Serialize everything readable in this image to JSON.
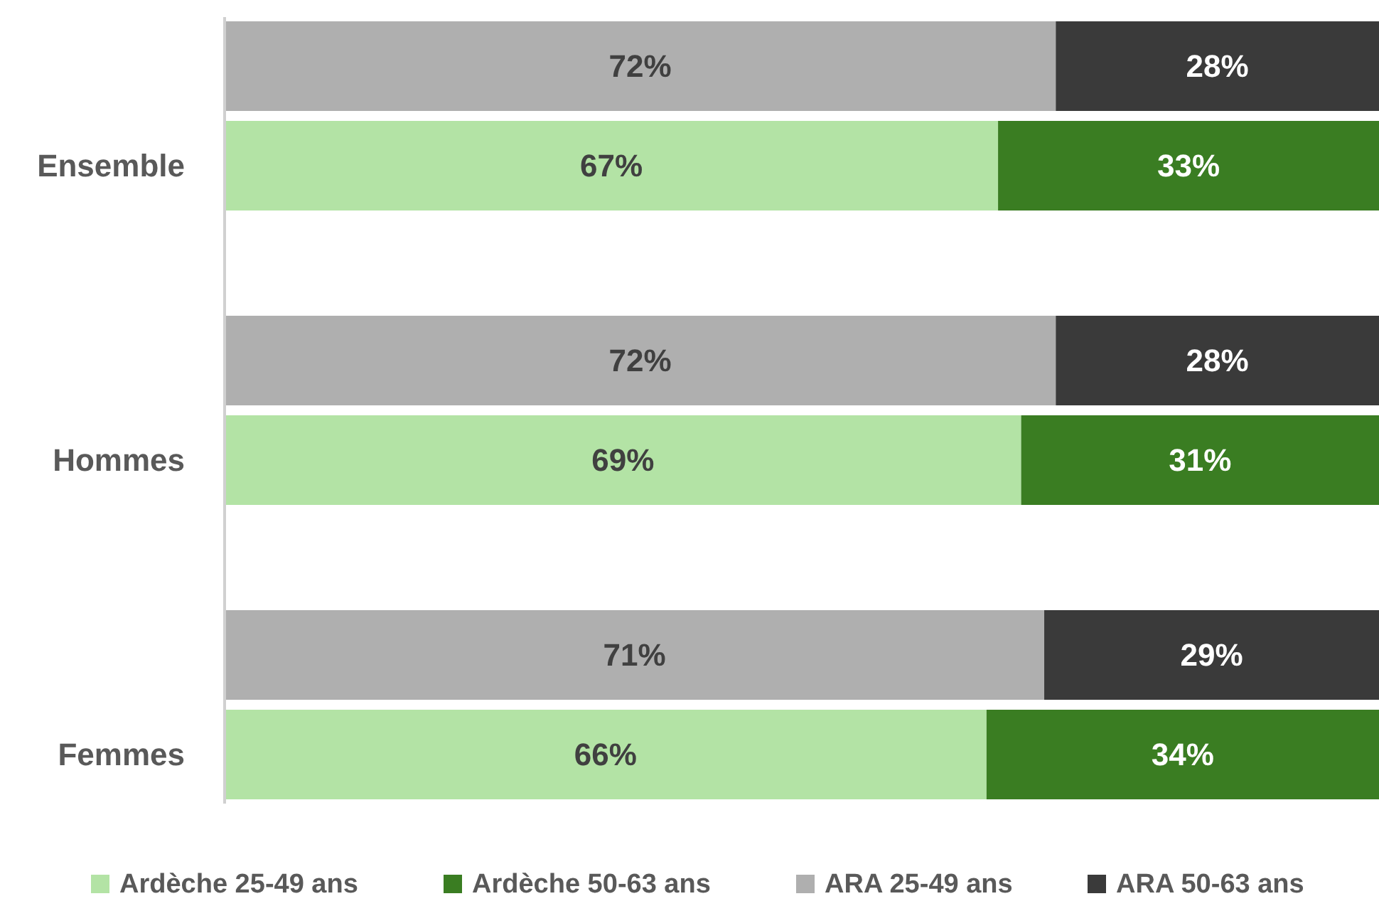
{
  "chart_data": {
    "type": "bar",
    "orientation": "horizontal",
    "stacked": true,
    "categories": [
      null,
      "Ensemble",
      null,
      "Hommes",
      null,
      "Femmes"
    ],
    "xlim": [
      0,
      100
    ],
    "tick_labels": "y",
    "legend": "bottom",
    "series": [
      {
        "name": "Ardèche 25-49 ans",
        "color": "#b3e3a5",
        "values": [
          null,
          67,
          null,
          69,
          null,
          66
        ],
        "value_labels": [
          null,
          "67%",
          null,
          "69%",
          null,
          "66%"
        ]
      },
      {
        "name": "Ardèche 50-63 ans",
        "color": "#3a7d22",
        "values": [
          null,
          33,
          null,
          31,
          null,
          34
        ],
        "value_labels": [
          null,
          "33%",
          null,
          "31%",
          null,
          "34%"
        ]
      },
      {
        "name": "ARA 25-49 ans",
        "color": "#afafaf",
        "values": [
          72,
          null,
          72,
          null,
          71,
          null
        ],
        "value_labels": [
          "72%",
          null,
          "72%",
          null,
          "71%",
          null
        ]
      },
      {
        "name": "ARA 50-63 ans",
        "color": "#3a3a3a",
        "values": [
          28,
          null,
          28,
          null,
          29,
          null
        ],
        "value_labels": [
          "28%",
          null,
          "28%",
          null,
          "29%",
          null
        ]
      }
    ]
  }
}
